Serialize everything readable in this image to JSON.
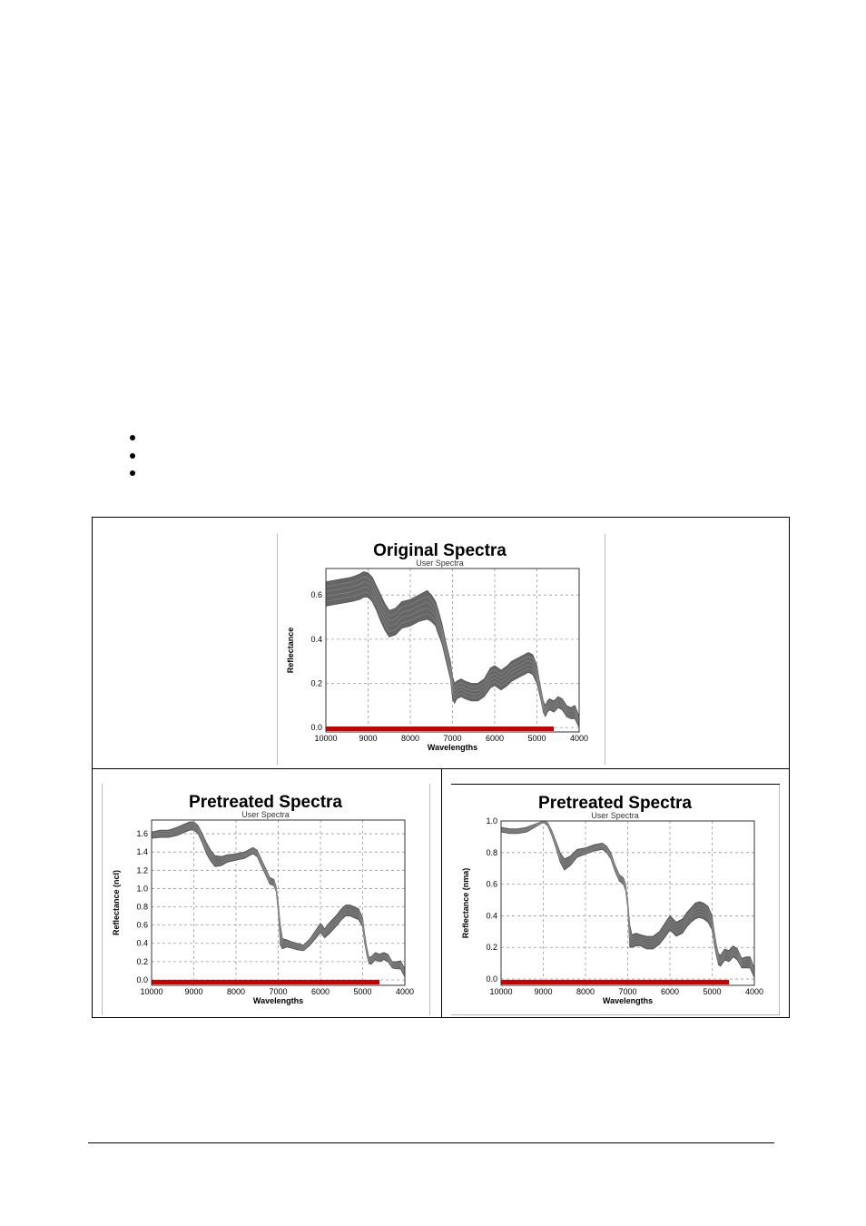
{
  "bullets": [
    "",
    "",
    ""
  ],
  "chart_data": [
    {
      "type": "line",
      "title": "Original Spectra",
      "subtitle": "User Spectra",
      "xlabel": "Wavelengths",
      "ylabel": "Reflectance",
      "xlim": [
        10000,
        4000
      ],
      "ylim": [
        -0.02,
        0.72
      ],
      "xticks": [
        10000,
        9000,
        8000,
        7000,
        6000,
        5000,
        4000
      ],
      "yticks": [
        0.0,
        0.2,
        0.4,
        0.6
      ],
      "ytick_labels": [
        "0.0",
        "0.2",
        "0.4",
        "0.6"
      ],
      "grid": true,
      "band_color": "#666666",
      "range_bar": {
        "from": 10000,
        "to": 4600,
        "color": "#cc0000"
      },
      "band": {
        "x": [
          10000,
          9700,
          9400,
          9200,
          9100,
          9000,
          8900,
          8800,
          8700,
          8600,
          8500,
          8350,
          8200,
          8000,
          7800,
          7600,
          7500,
          7400,
          7350,
          7250,
          7150,
          7050,
          7000,
          6950,
          6900,
          6800,
          6700,
          6550,
          6400,
          6250,
          6100,
          6000,
          5850,
          5700,
          5600,
          5500,
          5400,
          5300,
          5200,
          5100,
          5000,
          4950,
          4900,
          4850,
          4800,
          4750,
          4700,
          4600,
          4500,
          4400,
          4300,
          4200,
          4100,
          4000
        ],
        "upper": [
          0.66,
          0.67,
          0.68,
          0.695,
          0.705,
          0.7,
          0.68,
          0.64,
          0.6,
          0.56,
          0.53,
          0.54,
          0.57,
          0.58,
          0.6,
          0.62,
          0.6,
          0.57,
          0.54,
          0.47,
          0.38,
          0.3,
          0.23,
          0.2,
          0.21,
          0.22,
          0.21,
          0.2,
          0.2,
          0.22,
          0.27,
          0.28,
          0.26,
          0.28,
          0.3,
          0.31,
          0.32,
          0.33,
          0.34,
          0.33,
          0.28,
          0.22,
          0.17,
          0.12,
          0.1,
          0.12,
          0.13,
          0.12,
          0.14,
          0.13,
          0.1,
          0.09,
          0.1,
          0.05
        ],
        "lower": [
          0.55,
          0.56,
          0.57,
          0.58,
          0.59,
          0.59,
          0.57,
          0.53,
          0.48,
          0.44,
          0.41,
          0.42,
          0.45,
          0.46,
          0.48,
          0.49,
          0.48,
          0.46,
          0.43,
          0.38,
          0.3,
          0.22,
          0.13,
          0.11,
          0.13,
          0.14,
          0.13,
          0.12,
          0.12,
          0.14,
          0.18,
          0.19,
          0.17,
          0.19,
          0.21,
          0.22,
          0.23,
          0.24,
          0.25,
          0.24,
          0.2,
          0.16,
          0.12,
          0.07,
          0.05,
          0.07,
          0.08,
          0.07,
          0.09,
          0.08,
          0.05,
          0.04,
          0.04,
          0.0
        ]
      }
    },
    {
      "type": "line",
      "title": "Pretreated Spectra",
      "subtitle": "User Spectra",
      "xlabel": "Wavelengths",
      "ylabel": "Reflectance (ncl)",
      "xlim": [
        10000,
        4000
      ],
      "ylim": [
        -0.06,
        1.75
      ],
      "xticks": [
        10000,
        9000,
        8000,
        7000,
        6000,
        5000,
        4000
      ],
      "yticks": [
        0.0,
        0.2,
        0.4,
        0.6,
        0.8,
        1.0,
        1.2,
        1.4,
        1.6
      ],
      "ytick_labels": [
        "0.0",
        "0.2",
        "0.4",
        "0.6",
        "0.8",
        "1.0",
        "1.2",
        "1.4",
        "1.6"
      ],
      "grid": true,
      "band_color": "#666666",
      "range_bar": {
        "from": 10000,
        "to": 4600,
        "color": "#cc0000"
      },
      "band": {
        "x": [
          10000,
          9800,
          9600,
          9400,
          9200,
          9100,
          9000,
          8900,
          8800,
          8700,
          8600,
          8500,
          8350,
          8200,
          8000,
          7800,
          7600,
          7500,
          7400,
          7300,
          7200,
          7100,
          7050,
          7000,
          6950,
          6900,
          6800,
          6700,
          6550,
          6400,
          6250,
          6100,
          6000,
          5900,
          5800,
          5600,
          5500,
          5400,
          5300,
          5200,
          5100,
          5000,
          4950,
          4900,
          4850,
          4800,
          4700,
          4600,
          4500,
          4400,
          4300,
          4200,
          4100,
          4000
        ],
        "upper": [
          1.62,
          1.64,
          1.64,
          1.67,
          1.71,
          1.73,
          1.73,
          1.69,
          1.6,
          1.5,
          1.42,
          1.36,
          1.35,
          1.37,
          1.38,
          1.4,
          1.45,
          1.42,
          1.32,
          1.22,
          1.12,
          1.1,
          1.02,
          0.85,
          0.6,
          0.45,
          0.44,
          0.42,
          0.4,
          0.38,
          0.45,
          0.55,
          0.62,
          0.56,
          0.62,
          0.72,
          0.78,
          0.82,
          0.82,
          0.8,
          0.78,
          0.68,
          0.5,
          0.35,
          0.25,
          0.25,
          0.3,
          0.28,
          0.3,
          0.28,
          0.2,
          0.2,
          0.21,
          0.12
        ],
        "lower": [
          1.55,
          1.56,
          1.56,
          1.58,
          1.62,
          1.64,
          1.64,
          1.6,
          1.5,
          1.38,
          1.3,
          1.24,
          1.25,
          1.29,
          1.31,
          1.33,
          1.38,
          1.35,
          1.25,
          1.15,
          1.05,
          1.03,
          0.97,
          0.75,
          0.38,
          0.34,
          0.36,
          0.35,
          0.33,
          0.32,
          0.38,
          0.46,
          0.52,
          0.46,
          0.5,
          0.6,
          0.66,
          0.7,
          0.7,
          0.68,
          0.66,
          0.58,
          0.4,
          0.27,
          0.18,
          0.17,
          0.22,
          0.2,
          0.22,
          0.2,
          0.13,
          0.12,
          0.12,
          0.03
        ]
      }
    },
    {
      "type": "line",
      "title": "Pretreated Spectra",
      "subtitle": "User Spectra",
      "xlabel": "Wavelengths",
      "ylabel": "Reflectance (nma)",
      "xlim": [
        10000,
        4000
      ],
      "ylim": [
        -0.04,
        1.0
      ],
      "xticks": [
        10000,
        9000,
        8000,
        7000,
        6000,
        5000,
        4000
      ],
      "yticks": [
        0.0,
        0.2,
        0.4,
        0.6,
        0.8,
        1.0
      ],
      "ytick_labels": [
        "0.0",
        "0.2",
        "0.4",
        "0.6",
        "0.8",
        "1.0"
      ],
      "grid": true,
      "band_color": "#666666",
      "range_bar": {
        "from": 10000,
        "to": 4600,
        "color": "#cc0000"
      },
      "band": {
        "x": [
          10000,
          9800,
          9600,
          9400,
          9200,
          9000,
          8900,
          8800,
          8700,
          8600,
          8500,
          8350,
          8200,
          8000,
          7800,
          7600,
          7500,
          7400,
          7300,
          7200,
          7100,
          7050,
          7000,
          6950,
          6900,
          6800,
          6700,
          6550,
          6400,
          6250,
          6100,
          6000,
          5850,
          5700,
          5600,
          5500,
          5400,
          5300,
          5200,
          5100,
          5000,
          4950,
          4900,
          4850,
          4800,
          4700,
          4600,
          4500,
          4400,
          4300,
          4200,
          4100,
          4000
        ],
        "upper": [
          0.96,
          0.95,
          0.95,
          0.96,
          0.98,
          1.0,
          0.99,
          0.94,
          0.87,
          0.8,
          0.76,
          0.78,
          0.82,
          0.83,
          0.85,
          0.86,
          0.84,
          0.8,
          0.72,
          0.66,
          0.64,
          0.6,
          0.5,
          0.34,
          0.28,
          0.29,
          0.28,
          0.27,
          0.27,
          0.3,
          0.36,
          0.4,
          0.36,
          0.38,
          0.42,
          0.45,
          0.48,
          0.49,
          0.48,
          0.46,
          0.4,
          0.3,
          0.22,
          0.16,
          0.15,
          0.19,
          0.18,
          0.21,
          0.19,
          0.13,
          0.14,
          0.14,
          0.07
        ],
        "lower": [
          0.93,
          0.92,
          0.92,
          0.93,
          0.96,
          0.99,
          0.97,
          0.91,
          0.83,
          0.74,
          0.69,
          0.72,
          0.77,
          0.79,
          0.81,
          0.82,
          0.8,
          0.76,
          0.68,
          0.62,
          0.6,
          0.56,
          0.45,
          0.2,
          0.2,
          0.21,
          0.21,
          0.19,
          0.19,
          0.22,
          0.27,
          0.31,
          0.27,
          0.29,
          0.33,
          0.36,
          0.38,
          0.39,
          0.38,
          0.36,
          0.31,
          0.22,
          0.15,
          0.09,
          0.08,
          0.12,
          0.11,
          0.14,
          0.12,
          0.07,
          0.07,
          0.07,
          0.01
        ]
      }
    }
  ]
}
